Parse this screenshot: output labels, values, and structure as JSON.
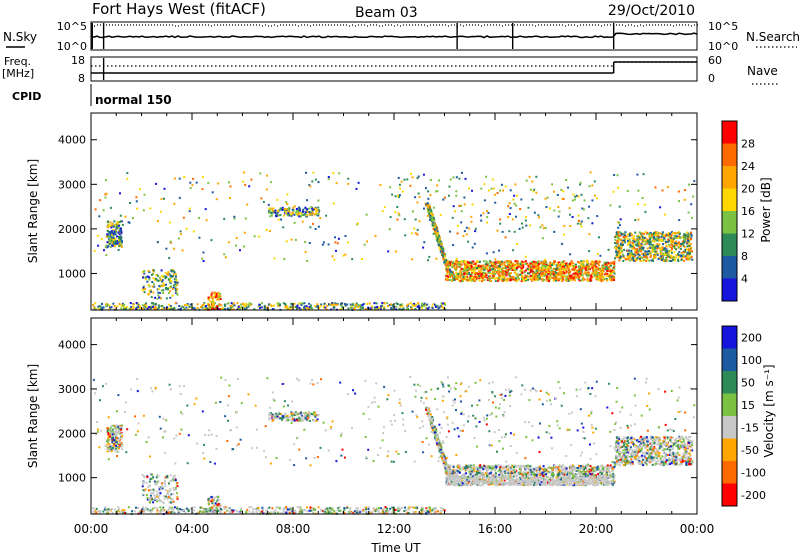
{
  "header": {
    "title": "Fort Hays West (fitACF)",
    "beam": "Beam 03",
    "date": "29/Oct/2010"
  },
  "top_panel": {
    "left_label": "N.Sky",
    "right_label": "N.Search",
    "left_ticks": [
      "10^5",
      "10^0"
    ],
    "right_ticks": [
      "10^5",
      "10^0"
    ]
  },
  "freq_panel": {
    "left_label": "Freq.",
    "left_unit": "[MHz]",
    "right_label": "Nave",
    "left_ticks": [
      "18",
      "8"
    ],
    "right_ticks": [
      "60",
      "0"
    ]
  },
  "cpid": {
    "label": "CPID",
    "value": "normal 150"
  },
  "colors": {
    "power_scale": [
      "#1414dc",
      "#1e5aa0",
      "#2e8b57",
      "#7cc242",
      "#ffd700",
      "#ffa500",
      "#ff6a00",
      "#ff0000"
    ],
    "velocity_scale": [
      "#ff0000",
      "#ff6a00",
      "#ffa500",
      "#c8c8c8",
      "#7cc242",
      "#2e8b57",
      "#1e5aa0",
      "#1414dc"
    ]
  },
  "chart_data": [
    {
      "type": "heatmap",
      "name": "power",
      "ylabel": "Slant Range [km]",
      "y_ticks": [
        "1000",
        "2000",
        "3000",
        "4000"
      ],
      "ylim": [
        180,
        4600
      ],
      "xlim": [
        0,
        24
      ],
      "colorbar_label": "Power [dB]",
      "colorbar_ticks": [
        "4",
        "8",
        "12",
        "16",
        "20",
        "24",
        "28"
      ]
    },
    {
      "type": "heatmap",
      "name": "velocity",
      "ylabel": "Slant Range [km]",
      "y_ticks": [
        "1000",
        "2000",
        "3000",
        "4000"
      ],
      "ylim": [
        180,
        4600
      ],
      "xlim": [
        0,
        24
      ],
      "colorbar_label": "Velocity [m s⁻¹]",
      "colorbar_ticks": [
        "200",
        "100",
        "50",
        "15",
        "-15",
        "-50",
        "-100",
        "-200"
      ]
    }
  ],
  "x_axis": {
    "label": "Time UT",
    "ticks": [
      "00:00",
      "04:00",
      "08:00",
      "12:00",
      "16:00",
      "20:00",
      "00:00"
    ]
  }
}
